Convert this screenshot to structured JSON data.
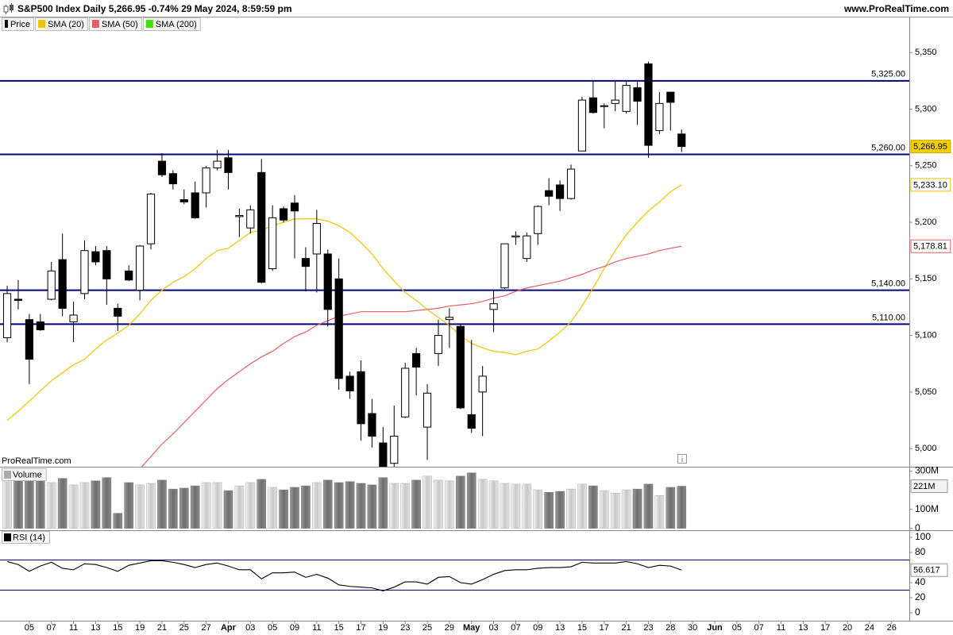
{
  "header": {
    "title": "S&P500 Index Daily 5,266.95 -0.74% 29 May 2024, 8:59:59 pm",
    "site": "www.ProRealTime.com"
  },
  "chart_data": [
    {
      "type": "candlestick",
      "watermark": "ProRealTime.com",
      "ylim": [
        4984,
        5381
      ],
      "yticks": [
        {
          "value": 5000,
          "label": "5,000"
        },
        {
          "value": 5050,
          "label": "5,050"
        },
        {
          "value": 5100,
          "label": "5,100"
        },
        {
          "value": 5150,
          "label": "5,150"
        },
        {
          "value": 5200,
          "label": "5,200"
        },
        {
          "value": 5250,
          "label": "5,250"
        },
        {
          "value": 5300,
          "label": "5,300"
        },
        {
          "value": 5350,
          "label": "5,350"
        }
      ],
      "levels": [
        {
          "value": 5325,
          "label": "5,325.00"
        },
        {
          "value": 5260,
          "label": "5,260.00"
        },
        {
          "value": 5140,
          "label": "5,140.00"
        },
        {
          "value": 5110,
          "label": "5,110.00"
        }
      ],
      "level_color": "#000080",
      "last_close_label": "5,266.95",
      "open": [
        5098,
        5132,
        5114,
        5112,
        5132,
        5167,
        5112,
        5137,
        5174,
        5175,
        5124,
        5157,
        5140,
        5181,
        5254,
        5243,
        5220,
        5226,
        5226,
        5248,
        5257,
        5205,
        5195,
        5244,
        5159,
        5212,
        5217,
        5168,
        5172,
        5172,
        5150,
        5064,
        5068,
        5031,
        5005,
        4987,
        5028,
        5084,
        5019,
        5084,
        5114,
        5108,
        5030,
        5050,
        5123,
        5142,
        5187,
        5168,
        5190,
        5228,
        5233,
        5221,
        5263,
        5310,
        5303,
        5305,
        5298,
        5319,
        5340,
        5281,
        5315,
        5278
      ],
      "high": [
        5144,
        5149,
        5119,
        5119,
        5165,
        5190,
        5130,
        5184,
        5179,
        5179,
        5128,
        5162,
        5180,
        5226,
        5261,
        5246,
        5229,
        5236,
        5250,
        5264,
        5264,
        5212,
        5215,
        5256,
        5215,
        5214,
        5224,
        5178,
        5211,
        5176,
        5168,
        5068,
        5078,
        5044,
        5019,
        5038,
        5076,
        5089,
        5057,
        5114,
        5124,
        5110,
        5096,
        5073,
        5140,
        5181,
        5192,
        5191,
        5215,
        5239,
        5237,
        5251,
        5311,
        5325,
        5305,
        5325,
        5324,
        5324,
        5342,
        5315,
        5315,
        5282
      ],
      "low": [
        5094,
        5123,
        5057,
        5104,
        5131,
        5117,
        5094,
        5132,
        5162,
        5127,
        5104,
        5148,
        5131,
        5176,
        5240,
        5229,
        5216,
        5203,
        5213,
        5246,
        5229,
        5187,
        5190,
        5146,
        5157,
        5200,
        5168,
        5139,
        5138,
        5108,
        5052,
        5044,
        5007,
        5001,
        4953,
        4969,
        5027,
        5047,
        4990,
        5073,
        5089,
        5035,
        5014,
        5011,
        5103,
        5141,
        5180,
        5165,
        5180,
        5215,
        5210,
        5220,
        5263,
        5296,
        5283,
        5298,
        5296,
        5286,
        5257,
        5278,
        5281,
        5262
      ],
      "close": [
        5137,
        5131,
        5079,
        5105,
        5157,
        5124,
        5118,
        5175,
        5165,
        5150,
        5117,
        5149,
        5179,
        5225,
        5242,
        5234,
        5218,
        5204,
        5248,
        5254,
        5244,
        5206,
        5211,
        5147,
        5204,
        5202,
        5210,
        5161,
        5199,
        5123,
        5062,
        5051,
        5022,
        5011,
        4967,
        5011,
        5071,
        5072,
        5049,
        5100,
        5116,
        5036,
        5018,
        5064,
        5128,
        5181,
        5188,
        5188,
        5214,
        5223,
        5221,
        5247,
        5308,
        5297,
        5303,
        5308,
        5321,
        5307,
        5268,
        5305,
        5306,
        5266.95
      ],
      "series": [
        {
          "name": "Price",
          "color": "#000000"
        },
        {
          "name": "SMA (20)",
          "color": "#f2c200",
          "last_label": "5,233.10",
          "values": [
            5025,
            5033,
            5042,
            5051,
            5060,
            5067,
            5074,
            5079,
            5088,
            5096,
            5102,
            5109,
            5119,
            5131,
            5140,
            5147,
            5152,
            5159,
            5168,
            5175,
            5177,
            5184,
            5191,
            5193,
            5197,
            5200,
            5203,
            5203,
            5203,
            5201,
            5197,
            5191,
            5182,
            5172,
            5159,
            5148,
            5138,
            5131,
            5123,
            5116,
            5109,
            5100,
            5093,
            5089,
            5086,
            5085,
            5083,
            5086,
            5088,
            5095,
            5103,
            5112,
            5126,
            5142,
            5159,
            5175,
            5189,
            5200,
            5210,
            5218,
            5227,
            5233.1
          ]
        },
        {
          "name": "SMA (50)",
          "color": "#e06262",
          "last_label": "5,178.81",
          "values": [
            null,
            null,
            null,
            null,
            null,
            null,
            null,
            null,
            null,
            null,
            null,
            null,
            4982,
            4993,
            5004,
            5013,
            5023,
            5033,
            5043,
            5053,
            5061,
            5068,
            5075,
            5081,
            5086,
            5093,
            5099,
            5103,
            5109,
            5113,
            5117,
            5119,
            5121,
            5121,
            5121,
            5121,
            5121,
            5122,
            5123,
            5124,
            5126,
            5127,
            5128,
            5130,
            5133,
            5135,
            5139,
            5142,
            5144,
            5146,
            5148,
            5151,
            5154,
            5158,
            5161,
            5165,
            5168,
            5170,
            5172,
            5175,
            5177,
            5178.81
          ]
        },
        {
          "name": "SMA (200)",
          "color": "#44e000"
        }
      ]
    },
    {
      "type": "bar",
      "title": "Volume",
      "last_label": "221M",
      "ylim": [
        -10,
        319
      ],
      "yticks": [
        {
          "value": 300,
          "label": "300M"
        },
        {
          "value": 100,
          "label": "100M"
        },
        0
      ],
      "values": [
        245,
        253,
        249,
        253,
        240,
        262,
        228,
        240,
        249,
        266,
        79,
        240,
        228,
        236,
        253,
        206,
        211,
        223,
        240,
        240,
        198,
        223,
        240,
        257,
        215,
        202,
        215,
        223,
        240,
        253,
        240,
        245,
        236,
        228,
        266,
        236,
        236,
        253,
        274,
        253,
        249,
        274,
        291,
        257,
        249,
        236,
        232,
        232,
        202,
        189,
        194,
        206,
        232,
        223,
        198,
        185,
        202,
        206,
        232,
        172,
        215,
        221
      ]
    },
    {
      "type": "line",
      "title": "RSI (14)",
      "color": "#000000",
      "ylim": [
        -10.6,
        108.5
      ],
      "yticks": [
        100,
        80,
        40,
        20,
        0
      ],
      "levels": [
        70,
        30
      ],
      "values": [
        68,
        64,
        55,
        62,
        67,
        59,
        57,
        65,
        64,
        60,
        55,
        63,
        66,
        69,
        69,
        67,
        64,
        60,
        64,
        66,
        62,
        57,
        57,
        45,
        53,
        53,
        54,
        47,
        51,
        46,
        37,
        35,
        34,
        33,
        29,
        34,
        41,
        41,
        38,
        47,
        48,
        40,
        38,
        44,
        51,
        56,
        57,
        57,
        59,
        60,
        60,
        61,
        67,
        66,
        66,
        66,
        68,
        65,
        60,
        63,
        62,
        56.617
      ],
      "xlim": [
        -0.65,
        81.6
      ],
      "xticks": [
        {
          "value": 2,
          "label": "05"
        },
        {
          "value": 4,
          "label": "07"
        },
        {
          "value": 6,
          "label": "11"
        },
        {
          "value": 8,
          "label": "13"
        },
        {
          "value": 10,
          "label": "15"
        },
        {
          "value": 12,
          "label": "19"
        },
        {
          "value": 14,
          "label": "21"
        },
        {
          "value": 16,
          "label": "25"
        },
        {
          "value": 18,
          "label": "27"
        },
        {
          "value": 20,
          "label": "Apr"
        },
        {
          "value": 22,
          "label": "03"
        },
        {
          "value": 24,
          "label": "05"
        },
        {
          "value": 26,
          "label": "09"
        },
        {
          "value": 28,
          "label": "11"
        },
        {
          "value": 30,
          "label": "15"
        },
        {
          "value": 32,
          "label": "17"
        },
        {
          "value": 34,
          "label": "19"
        },
        {
          "value": 36,
          "label": "23"
        },
        {
          "value": 38,
          "label": "25"
        },
        {
          "value": 40,
          "label": "29"
        },
        {
          "value": 42,
          "label": "May"
        },
        {
          "value": 44,
          "label": "03"
        },
        {
          "value": 46,
          "label": "07"
        },
        {
          "value": 48,
          "label": "09"
        },
        {
          "value": 50,
          "label": "13"
        },
        {
          "value": 52,
          "label": "15"
        },
        {
          "value": 54,
          "label": "17"
        },
        {
          "value": 56,
          "label": "21"
        },
        {
          "value": 58,
          "label": "23"
        },
        {
          "value": 60,
          "label": "28"
        },
        {
          "value": 62,
          "label": "30"
        },
        {
          "value": 64,
          "label": "Jun"
        },
        {
          "value": 66,
          "label": "05"
        },
        {
          "value": 68,
          "label": "07"
        },
        {
          "value": 70,
          "label": "11"
        },
        {
          "value": 72,
          "label": "13"
        },
        {
          "value": 74,
          "label": "17"
        },
        {
          "value": 76,
          "label": "20"
        },
        {
          "value": 78,
          "label": "24"
        },
        {
          "value": 80,
          "label": "26"
        }
      ]
    }
  ]
}
